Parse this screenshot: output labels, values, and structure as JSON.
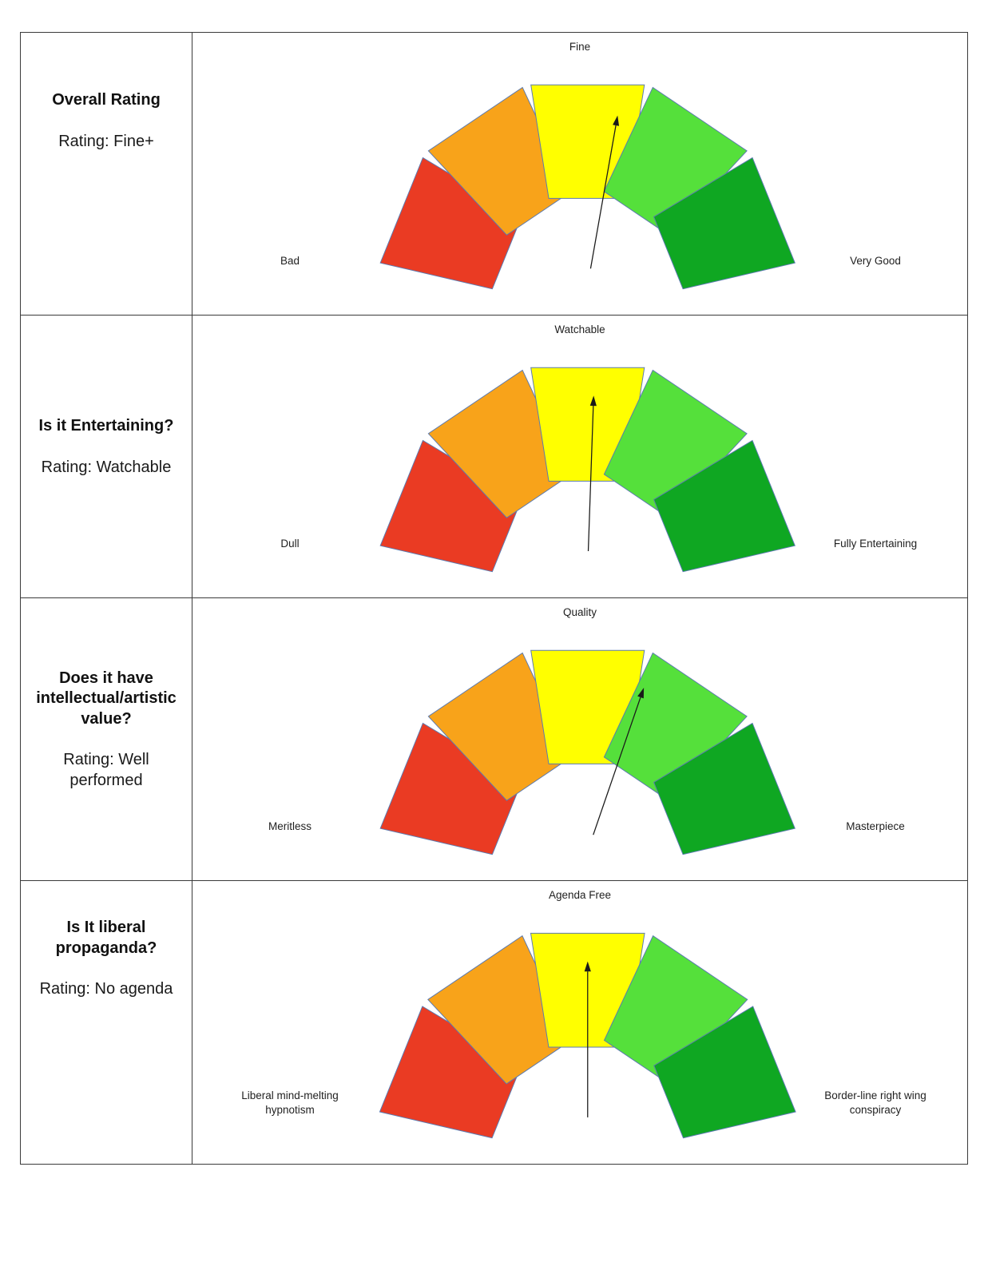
{
  "style": {
    "segment_colors": [
      "#ea3b23",
      "#f8a31a",
      "#ffff00",
      "#55e03b",
      "#0fa722"
    ],
    "segment_border": "#5b7ab0",
    "arc_color": "#a9a9a9",
    "needle_color": "#1a1a1a",
    "table_border": "#3a3a3a"
  },
  "rows": [
    {
      "heading": "Overall Rating",
      "rating": "Rating: Fine+",
      "gauge": {
        "top_label": "Fine",
        "left_label": "Bad",
        "right_label": "Very Good",
        "needle_angle_deg": 10
      }
    },
    {
      "heading": "Is it Entertaining?",
      "rating": "Rating: Watchable",
      "gauge": {
        "top_label": "Watchable",
        "left_label": "Dull",
        "right_label": "Fully Entertaining",
        "needle_angle_deg": 2
      }
    },
    {
      "heading": "Does it have intellectual/artistic value?",
      "rating": "Rating: Well performed",
      "gauge": {
        "top_label": "Quality",
        "left_label": "Meritless",
        "right_label": "Masterpiece",
        "needle_angle_deg": 19
      }
    },
    {
      "heading": "Is It liberal propaganda?",
      "rating": "Rating: No agenda",
      "gauge": {
        "top_label": "Agenda Free",
        "left_label": "Liberal mind-melting hypnotism",
        "right_label": "Border-line right wing conspiracy",
        "needle_angle_deg": 0
      }
    }
  ],
  "chart_data": [
    {
      "type": "gauge",
      "title": "Overall Rating",
      "value_label": "Fine+",
      "needle_angle_deg": 10,
      "needle_position_fraction": 0.56,
      "scale_labels": {
        "left": "Bad",
        "top": "Fine",
        "right": "Very Good"
      },
      "zones": [
        "red",
        "orange",
        "yellow",
        "light-green",
        "green"
      ]
    },
    {
      "type": "gauge",
      "title": "Is it Entertaining?",
      "value_label": "Watchable",
      "needle_angle_deg": 2,
      "needle_position_fraction": 0.51,
      "scale_labels": {
        "left": "Dull",
        "top": "Watchable",
        "right": "Fully Entertaining"
      },
      "zones": [
        "red",
        "orange",
        "yellow",
        "light-green",
        "green"
      ]
    },
    {
      "type": "gauge",
      "title": "Does it have intellectual/artistic value?",
      "value_label": "Well performed",
      "needle_angle_deg": 19,
      "needle_position_fraction": 0.61,
      "scale_labels": {
        "left": "Meritless",
        "top": "Quality",
        "right": "Masterpiece"
      },
      "zones": [
        "red",
        "orange",
        "yellow",
        "light-green",
        "green"
      ]
    },
    {
      "type": "gauge",
      "title": "Is It liberal propaganda?",
      "value_label": "No agenda",
      "needle_angle_deg": 0,
      "needle_position_fraction": 0.5,
      "scale_labels": {
        "left": "Liberal mind-melting hypnotism",
        "top": "Agenda Free",
        "right": "Border-line right wing conspiracy"
      },
      "zones": [
        "red",
        "orange",
        "yellow",
        "light-green",
        "green"
      ]
    }
  ]
}
